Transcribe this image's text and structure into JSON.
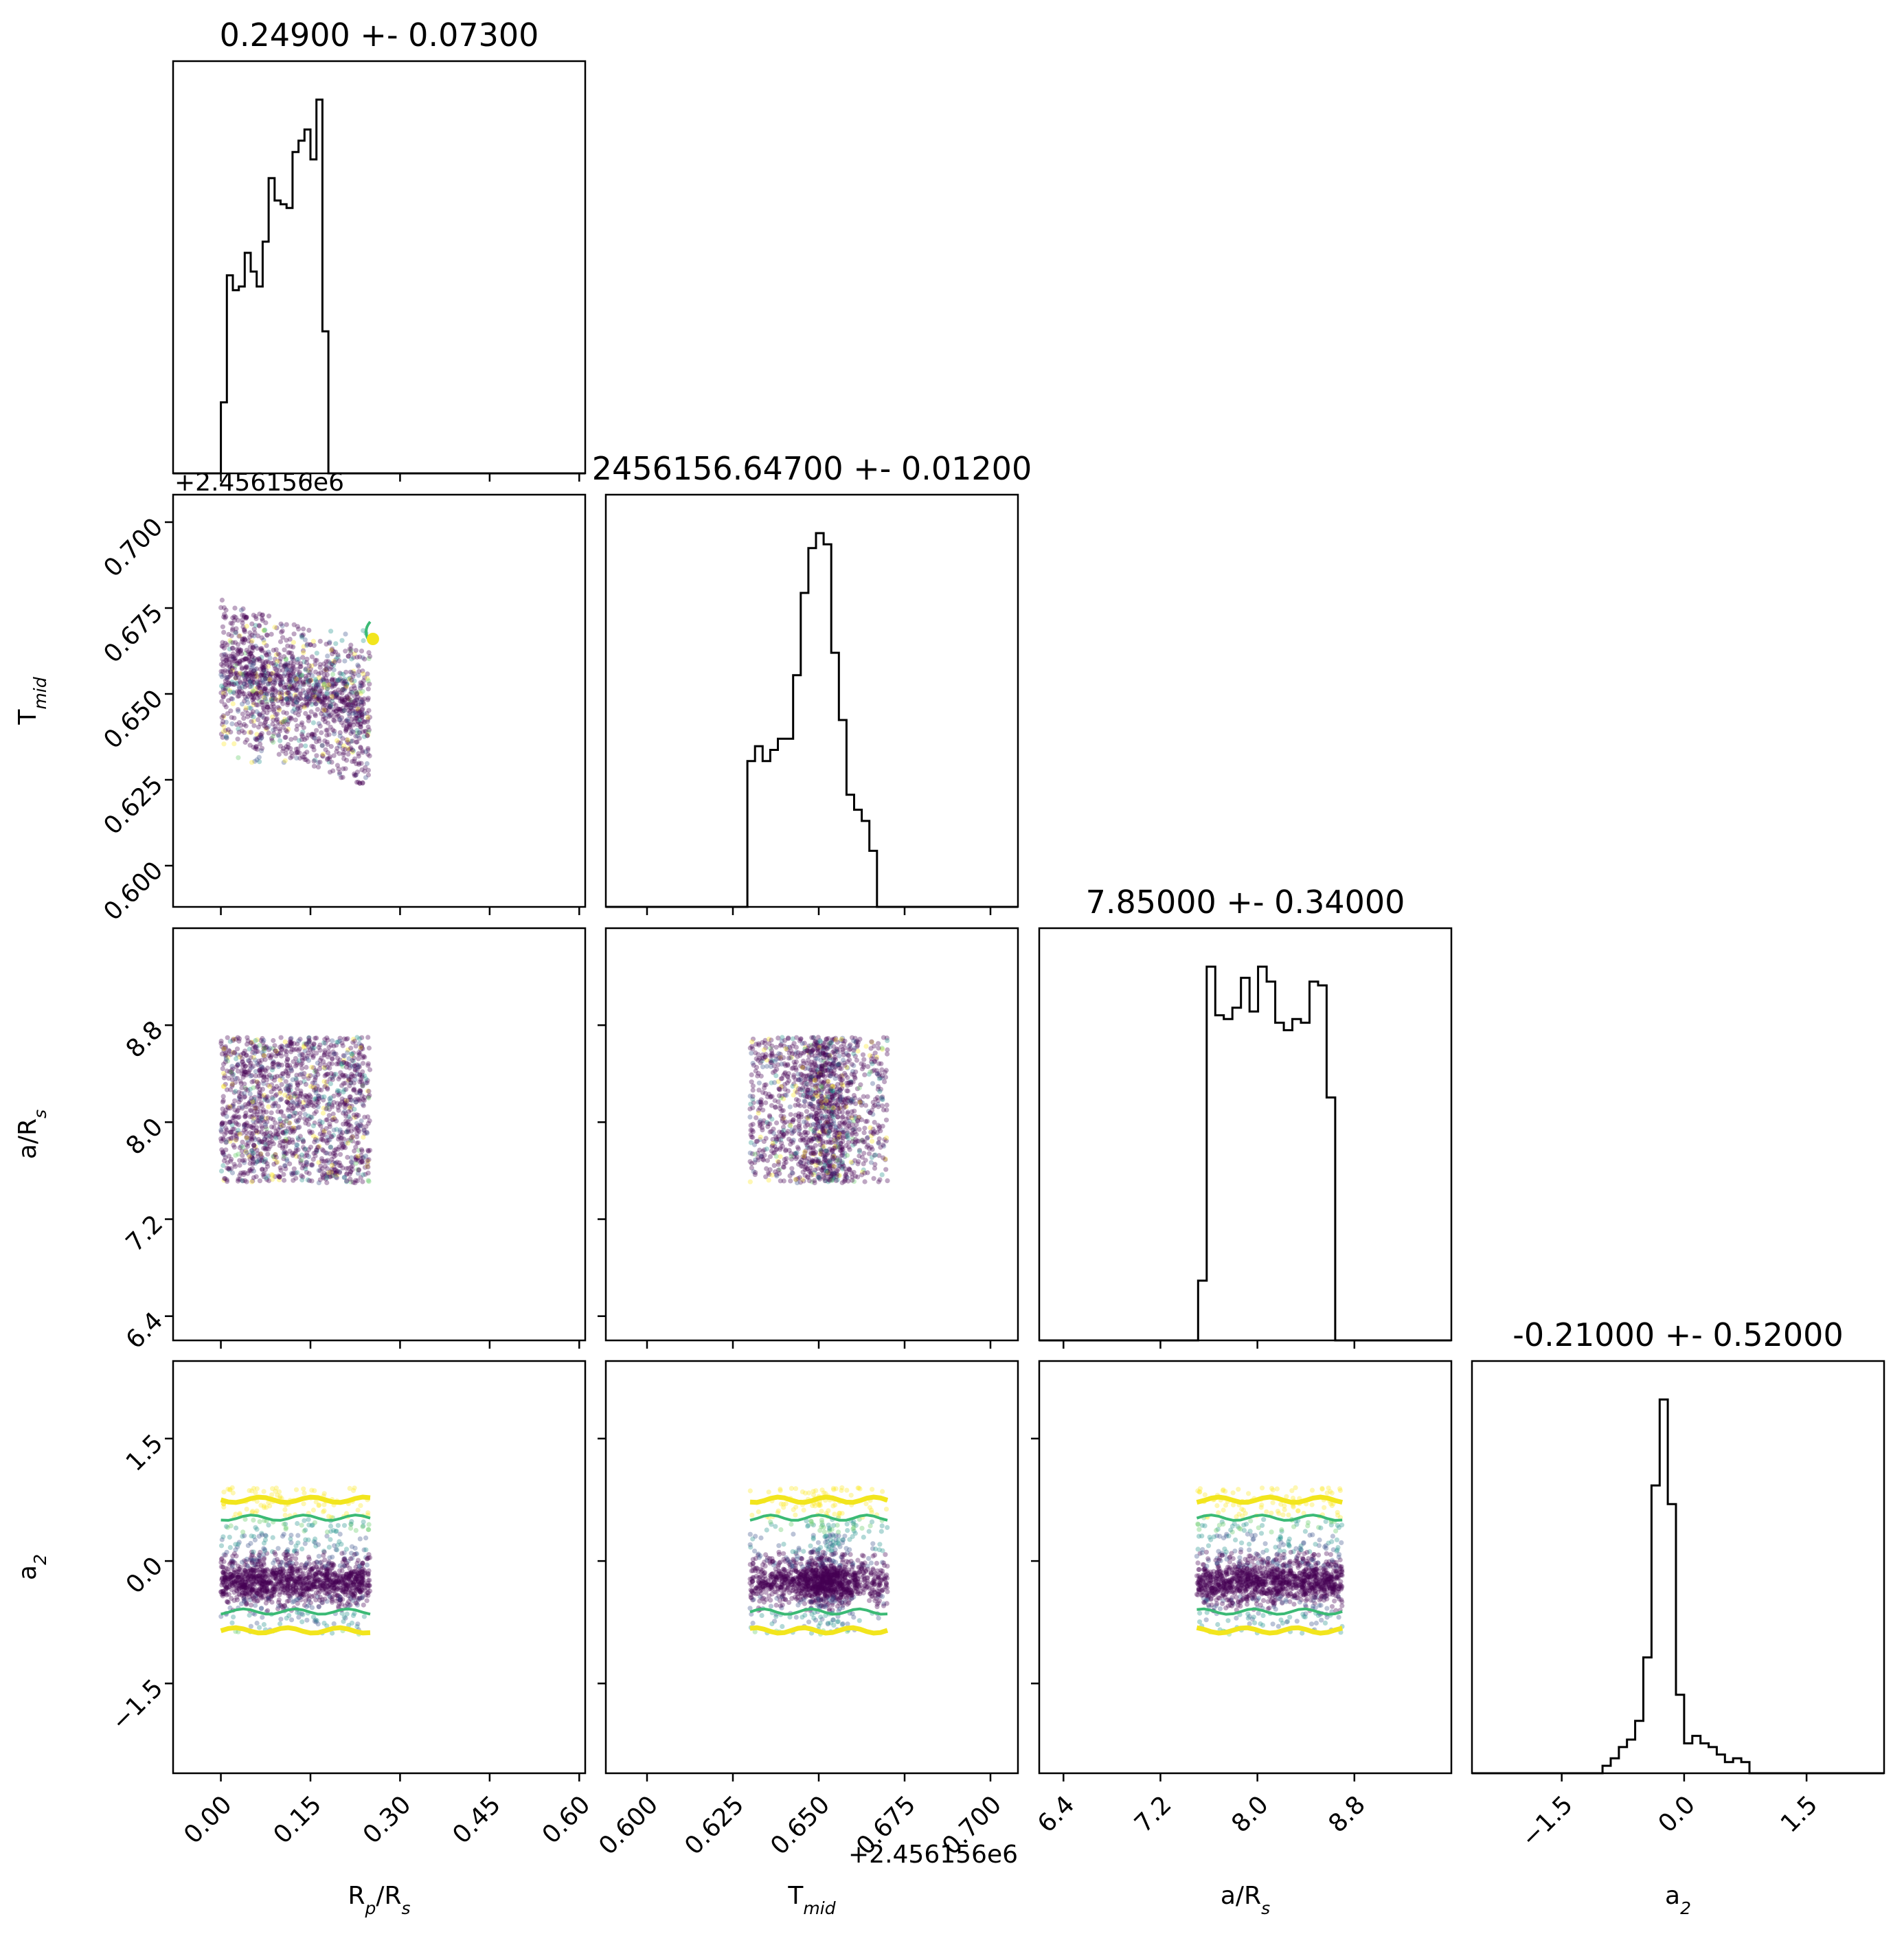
{
  "colors": {
    "frame": "#000000",
    "hist_line": "#000000",
    "scatter": [
      "#440154",
      "#3b528b",
      "#21918c",
      "#5ec962",
      "#fde725"
    ],
    "contour_inner": "#3bba75",
    "contour_outer": "#f2e51d"
  },
  "chart_data": {
    "type": "corner",
    "variables": [
      {
        "axis_label": "R_p/R_s",
        "title": "0.24900 +- 0.07300",
        "range": [
          -0.08,
          0.61
        ],
        "ticks": [
          0.0,
          0.15,
          0.3,
          0.45,
          0.6
        ],
        "tick_labels": [
          "0.00",
          "0.15",
          "0.30",
          "0.45",
          "0.60"
        ],
        "uniform_range": [
          0.0,
          0.25
        ],
        "hist_edges_start": -0.01,
        "hist_bin_width": 0.01,
        "hist_counts": [
          0,
          0.19,
          0.53,
          0.49,
          0.5,
          0.59,
          0.54,
          0.5,
          0.62,
          0.79,
          0.73,
          0.72,
          0.71,
          0.86,
          0.89,
          0.92,
          0.84,
          1.0,
          0.38,
          0,
          0
        ]
      },
      {
        "axis_label": "T_mid",
        "axis_offset": "+2.456156e6",
        "title": "2456156.64700 +- 0.01200",
        "range": [
          2456156.588,
          2456156.708
        ],
        "ticks": [
          2456156.6,
          2456156.625,
          2456156.65,
          2456156.675,
          2456156.7
        ],
        "tick_labels": [
          "0.600",
          "0.625",
          "0.650",
          "0.675",
          "0.700"
        ],
        "uniform_range": [
          2456156.63,
          2456156.67
        ],
        "hist_edges_start": 2456156.627,
        "hist_bin_width": 0.00222,
        "hist_counts": [
          0,
          0.39,
          0.43,
          0.39,
          0.42,
          0.45,
          0.45,
          0.62,
          0.84,
          0.96,
          1.0,
          0.97,
          0.68,
          0.5,
          0.3,
          0.26,
          0.23,
          0.15,
          0
        ]
      },
      {
        "axis_label": "a/R_s",
        "title": "7.85000 +- 0.34000",
        "range": [
          6.2,
          9.6
        ],
        "ticks": [
          6.4,
          7.2,
          8.0,
          8.8
        ],
        "tick_labels": [
          "6.4",
          "7.2",
          "8.0",
          "8.8"
        ],
        "uniform_range": [
          7.5,
          8.7
        ],
        "hist_edges_start": 7.44,
        "hist_bin_width": 0.0707,
        "hist_counts": [
          0,
          0.16,
          1.0,
          0.87,
          0.86,
          0.89,
          0.97,
          0.88,
          1.0,
          0.96,
          0.85,
          0.83,
          0.86,
          0.85,
          0.96,
          0.95,
          0.65,
          0
        ]
      },
      {
        "axis_label": "a_2",
        "title": "-0.21000 +- 0.52000",
        "range": [
          -2.6,
          2.45
        ],
        "ticks": [
          -1.5,
          0.0,
          1.5
        ],
        "tick_labels": [
          "−1.5",
          "0.0",
          "1.5"
        ],
        "hist_edges_start": -1.1,
        "hist_bin_width": 0.1,
        "hist_counts": [
          0,
          0.02,
          0.04,
          0.07,
          0.09,
          0.14,
          0.31,
          0.77,
          1.0,
          0.72,
          0.21,
          0.08,
          0.1,
          0.08,
          0.07,
          0.05,
          0.03,
          0.04,
          0.03,
          0
        ]
      }
    ],
    "posterior_model": {
      "a2_center": -0.25,
      "a2_core_sd": 0.14,
      "a2_tail_fraction": 0.3,
      "a2_tail_range": [
        -0.9,
        0.9
      ],
      "rp_tmid_slope": -0.06,
      "tmid_dense_band": [
        2456156.645,
        2456156.658
      ],
      "contour_inner_a2": [
        -0.62,
        0.53
      ],
      "contour_outer_a2": [
        -0.85,
        0.75
      ]
    }
  }
}
